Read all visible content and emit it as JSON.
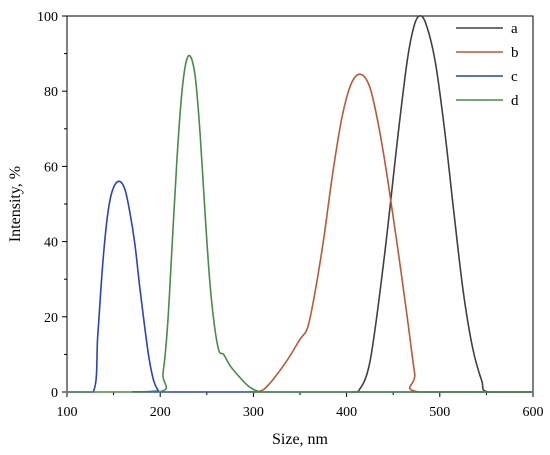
{
  "chart_data": {
    "type": "line",
    "title": "",
    "xlabel": "Size, nm",
    "ylabel": "Intensity, %",
    "xlim": [
      100,
      600
    ],
    "ylim": [
      0,
      100
    ],
    "xticks": [
      100,
      200,
      300,
      400,
      500,
      600
    ],
    "yticks": [
      0,
      20,
      40,
      60,
      80,
      100
    ],
    "grid": false,
    "legend_position": "top-right",
    "series": [
      {
        "name": "a",
        "color": "#404040",
        "x": [
          405,
          412,
          425,
          440,
          455,
          465,
          472,
          478,
          485,
          495,
          505,
          515,
          525,
          535,
          545,
          552,
          600
        ],
        "y": [
          0,
          0,
          8,
          35,
          68,
          88,
          97,
          100,
          98,
          88,
          70,
          48,
          27,
          12,
          3,
          0,
          0
        ]
      },
      {
        "name": "b",
        "color": "#b85a3a",
        "x": [
          300,
          310,
          320,
          335,
          350,
          358,
          365,
          375,
          385,
          395,
          405,
          415,
          425,
          435,
          445,
          455,
          465,
          473,
          478,
          600
        ],
        "y": [
          0,
          0.5,
          3,
          8,
          14,
          17,
          25,
          40,
          58,
          73,
          82,
          84.5,
          81,
          70,
          55,
          38,
          20,
          5,
          0,
          0
        ]
      },
      {
        "name": "c",
        "color": "#2a44b8",
        "x": [
          100,
          128,
          133,
          138,
          143,
          148,
          155,
          162,
          168,
          173,
          178,
          183,
          188,
          193,
          198,
          200,
          600
        ],
        "y": [
          0,
          0,
          15,
          33,
          46,
          53,
          56,
          54,
          47,
          39,
          28,
          18,
          9,
          3,
          0.3,
          0,
          0
        ]
      },
      {
        "name": "d",
        "color": "#4a8a4a",
        "x": [
          100,
          198,
          203,
          208,
          213,
          218,
          223,
          228,
          233,
          238,
          243,
          248,
          253,
          258,
          263,
          268,
          275,
          285,
          295,
          305,
          315,
          600
        ],
        "y": [
          0,
          0,
          5,
          18,
          40,
          62,
          79,
          88,
          89,
          83,
          68,
          48,
          30,
          18,
          11,
          10,
          7,
          4,
          1.5,
          0.2,
          0,
          0
        ]
      }
    ]
  }
}
